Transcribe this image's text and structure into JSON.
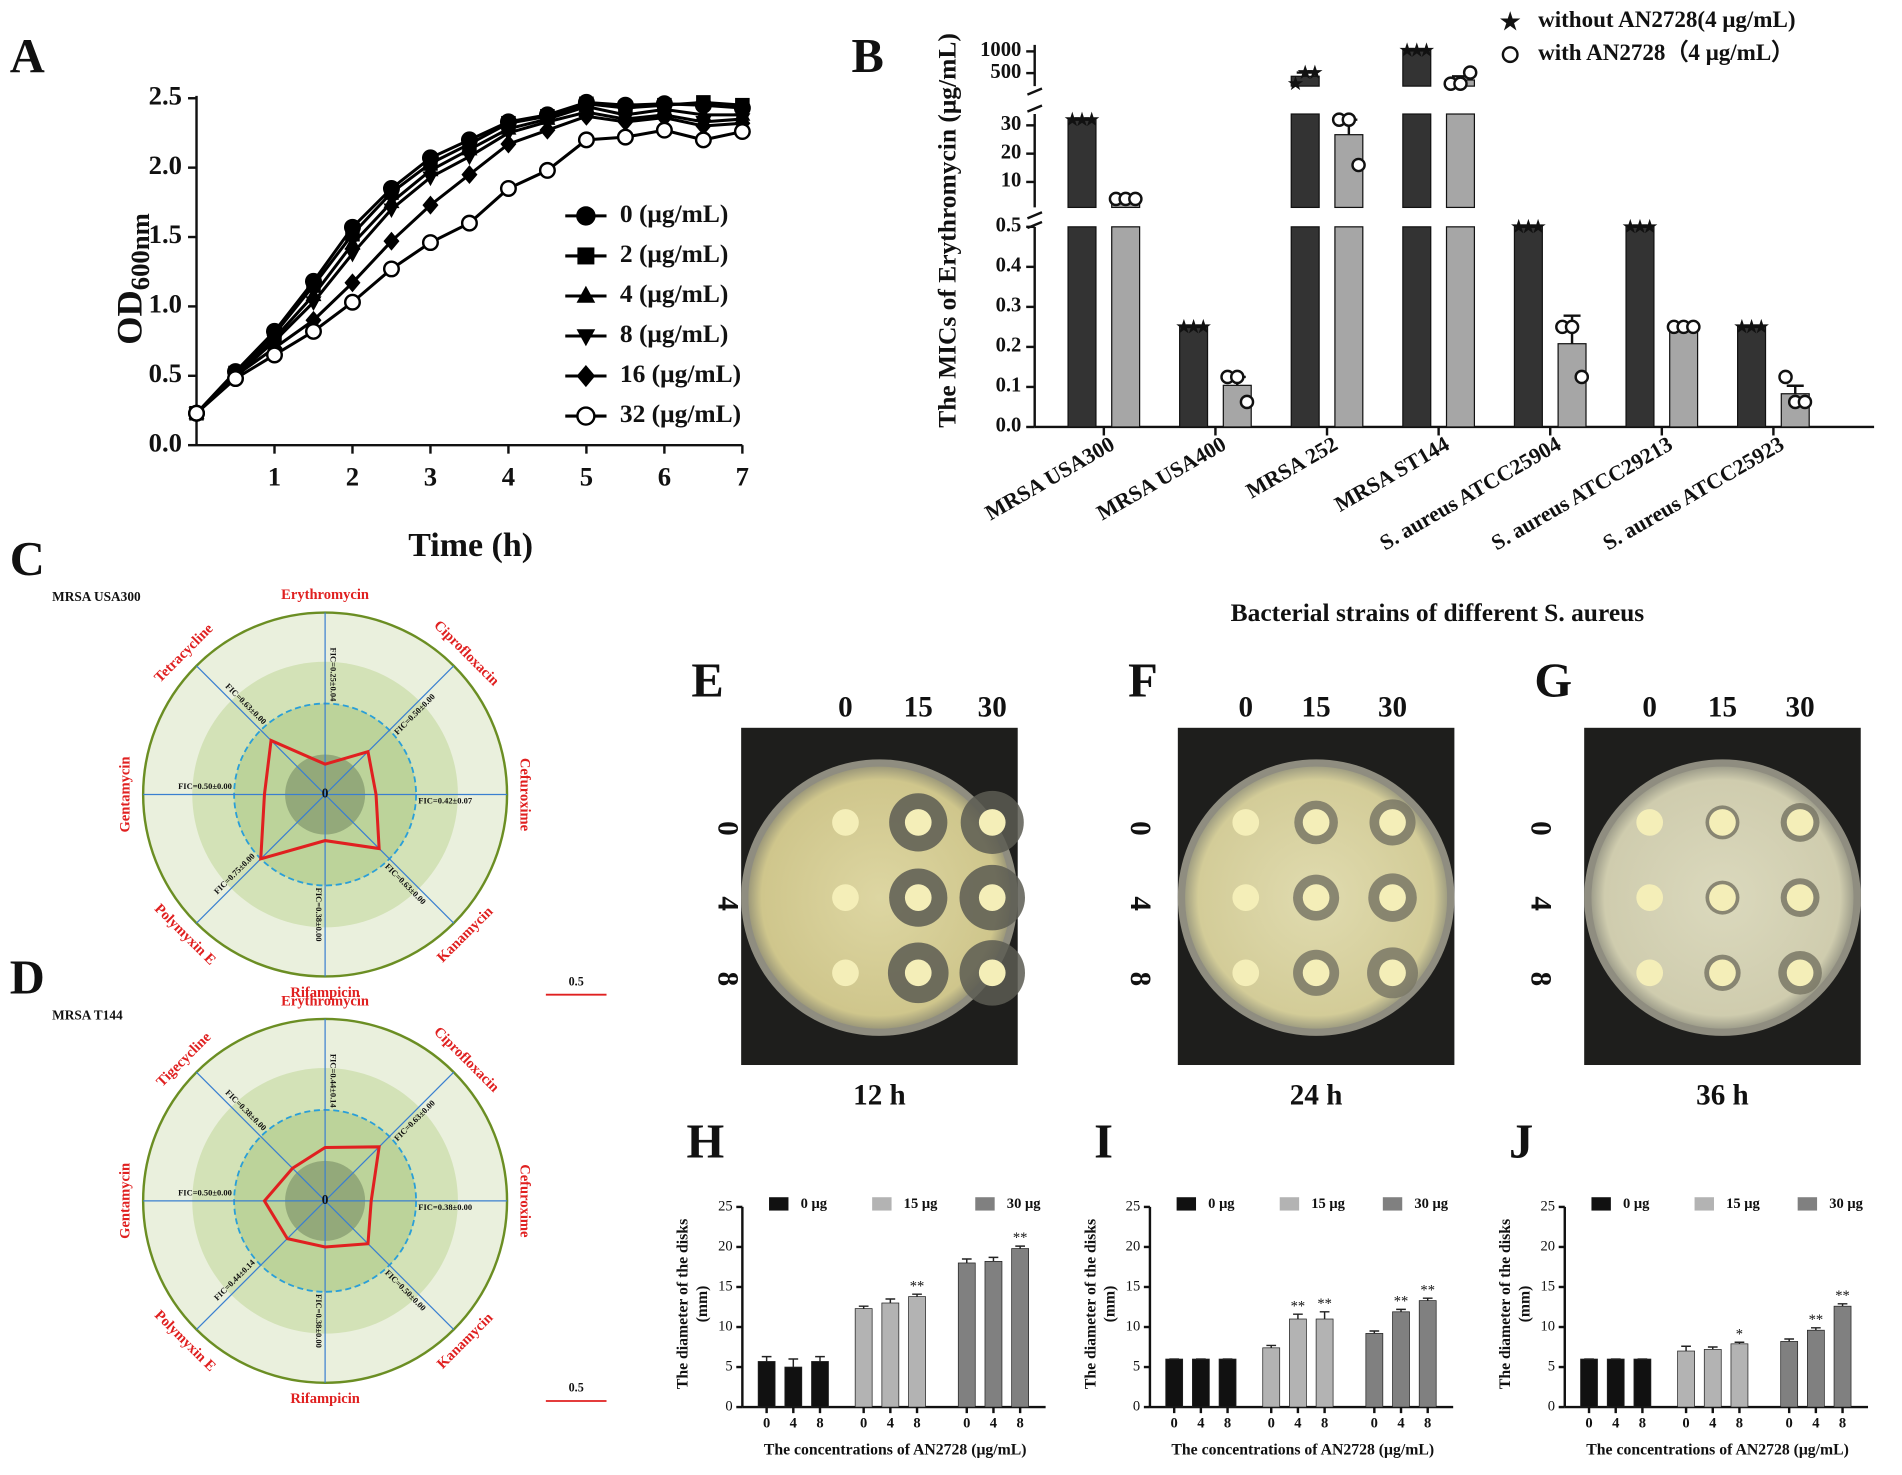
{
  "chart_data": [
    {
      "type": "line",
      "label": "A",
      "xlabel": "Time (h)",
      "ylabel": {
        "main": "OD",
        "sub": "600nm"
      },
      "x": [
        0,
        0.5,
        1,
        1.5,
        2,
        2.5,
        3,
        3.5,
        4,
        4.5,
        5,
        5.5,
        6,
        6.5,
        7
      ],
      "xlim": [
        0,
        7
      ],
      "xticks": [
        1,
        2,
        3,
        4,
        5,
        6,
        7
      ],
      "ylim": [
        0,
        2.5
      ],
      "yticks": [
        {
          "value": 0,
          "label": "0.0"
        },
        0.5,
        {
          "value": 1,
          "label": "1.0"
        },
        1.5,
        {
          "value": 2,
          "label": "2.0"
        },
        2.5
      ],
      "series": [
        {
          "name": "0 (μg/mL)",
          "color": "#000000",
          "marker": "circle",
          "values": [
            0.23,
            0.53,
            0.82,
            1.18,
            1.57,
            1.85,
            2.07,
            2.2,
            2.33,
            2.38,
            2.47,
            2.45,
            2.46,
            2.45,
            2.43
          ]
        },
        {
          "name": "2 (μg/mL)",
          "color": "#000000",
          "marker": "square",
          "values": [
            0.23,
            0.52,
            0.8,
            1.15,
            1.52,
            1.82,
            2.03,
            2.17,
            2.32,
            2.37,
            2.46,
            2.43,
            2.45,
            2.47,
            2.45
          ]
        },
        {
          "name": "4 (μg/mL)",
          "color": "#000000",
          "marker": "triangle",
          "values": [
            0.23,
            0.5,
            0.77,
            1.08,
            1.45,
            1.75,
            1.98,
            2.13,
            2.28,
            2.35,
            2.44,
            2.38,
            2.42,
            2.38,
            2.38
          ]
        },
        {
          "name": "8 (μg/mL)",
          "color": "#000000",
          "marker": "triangle-down",
          "values": [
            0.23,
            0.5,
            0.75,
            1.03,
            1.38,
            1.7,
            1.93,
            2.08,
            2.25,
            2.33,
            2.4,
            2.35,
            2.38,
            2.33,
            2.35
          ]
        },
        {
          "name": "16 (μg/mL)",
          "color": "#000000",
          "marker": "diamond",
          "values": [
            0.23,
            0.5,
            0.7,
            0.9,
            1.17,
            1.47,
            1.73,
            1.95,
            2.17,
            2.27,
            2.37,
            2.33,
            2.36,
            2.3,
            2.32
          ]
        },
        {
          "name": "32 (μg/mL)",
          "color": "#000000",
          "marker": "circle-open",
          "values": [
            0.23,
            0.48,
            0.65,
            0.82,
            1.03,
            1.27,
            1.46,
            1.6,
            1.85,
            1.98,
            2.2,
            2.22,
            2.27,
            2.2,
            2.26
          ]
        }
      ]
    },
    {
      "type": "bar",
      "label": "B",
      "ylabel": "The MICs of Erythromycin (μg/mL)",
      "xlabel": "Bacterial strains of different S. aureus",
      "categories": [
        "MRSA USA300",
        "MRSA USA400",
        "MRSA 252",
        "MRSA ST144",
        "S. aureus ATCC25904",
        "S. aureus ATCC29213",
        "S. aureus ATCC25923"
      ],
      "y_segments": [
        {
          "ylim": [
            0,
            0.5
          ],
          "yticks": [
            {
              "value": 0,
              "label": "0.0"
            },
            0.1,
            0.2,
            0.3,
            0.4,
            0.5
          ]
        },
        {
          "ylim": [
            1,
            34
          ],
          "yticks": [
            10,
            20,
            30
          ]
        },
        {
          "ylim": [
            200,
            1150
          ],
          "yticks": [
            500,
            1000
          ]
        }
      ],
      "series": [
        {
          "name": "without AN2728(4 μg/mL)",
          "color": "#333333",
          "marker": "star",
          "values": [
            32,
            0.25,
            426.7,
            1024,
            0.5,
            0.5,
            0.25
          ],
          "errors": [
            0,
            0,
            85,
            0,
            0,
            0,
            0
          ],
          "points": [
            [
              32,
              32,
              32
            ],
            [
              0.25,
              0.25,
              0.25
            ],
            [
              256,
              512,
              512
            ],
            [
              1024,
              1024,
              1024
            ],
            [
              0.5,
              0.5,
              0.5
            ],
            [
              0.5,
              0.5,
              0.5
            ],
            [
              0.25,
              0.25,
              0.25
            ]
          ]
        },
        {
          "name": "with AN2728（4 μg/mL）",
          "color": "#a6a6a6",
          "marker": "circle-open",
          "values": [
            4,
            0.104,
            26.7,
            341.3,
            0.208,
            0.25,
            0.083
          ],
          "errors": [
            0,
            0.021,
            5.3,
            85,
            0.07,
            0,
            0.02
          ],
          "points": [
            [
              4,
              4,
              4
            ],
            [
              0.125,
              0.125,
              0.0625
            ],
            [
              32,
              32,
              16
            ],
            [
              256,
              256,
              512
            ],
            [
              0.25,
              0.25,
              0.125
            ],
            [
              0.25,
              0.25,
              0.25
            ],
            [
              0.125,
              0.0625,
              0.0625
            ]
          ]
        }
      ]
    },
    {
      "type": "radar",
      "label": "C",
      "title": "MRSA USA300",
      "rlim": [
        0,
        1.5
      ],
      "scale_bar": 0.5,
      "color": "#e02020",
      "axes": [
        "Erythromycin",
        "Ciprofloxacin",
        "Cefuroxime",
        "Kanamycin",
        "Rifampicin",
        "Polymyxin E",
        "Gentamycin",
        "Tetracycline"
      ],
      "values": [
        0.25,
        0.5,
        0.42,
        0.63,
        0.38,
        0.75,
        0.5,
        0.63
      ],
      "value_labels": [
        "FIC=0.25±0.04",
        "FIC=0.50±0.00",
        "FIC=0.42±0.07",
        "FIC=0.63±0.00",
        "FIC=0.38±0.00",
        "FIC=0.75±0.00",
        "FIC=0.50±0.00",
        "FIC=0.63±0.00"
      ]
    },
    {
      "type": "radar",
      "label": "D",
      "title": "MRSA T144",
      "rlim": [
        0,
        1.5
      ],
      "scale_bar": 0.5,
      "color": "#e02020",
      "axes": [
        "Erythromycin",
        "Ciprofloxacin",
        "Cefuroxime",
        "Kanamycin",
        "Rifampicin",
        "Polymyxin E",
        "Gentamycin",
        "Tigecycline"
      ],
      "values": [
        0.44,
        0.63,
        0.38,
        0.5,
        0.38,
        0.44,
        0.5,
        0.38
      ],
      "value_labels": [
        "FIC=0.44±0.14",
        "FIC=0.63±0.00",
        "FIC=0.38±0.00",
        "FIC=0.50±0.00",
        "FIC=0.38±0.00",
        "FIC=0.44±0.14",
        "FIC=0.50±0.00",
        "FIC=0.38±0.00"
      ]
    },
    {
      "type": "bar",
      "label": "H",
      "ylabel": [
        "The diameter of the disks",
        "(mm)"
      ],
      "xlabel": "The concentrations of AN2728 (μg/mL)",
      "categories": [
        "0",
        "4",
        "8"
      ],
      "ylim": [
        0,
        25
      ],
      "yticks": [
        0,
        5,
        10,
        15,
        20,
        25
      ],
      "series": [
        {
          "name": "0 μg",
          "color": "#111111",
          "values": [
            5.7,
            5.0,
            5.7
          ],
          "errors": [
            0.6,
            1.0,
            0.6
          ],
          "annotations": [
            null,
            null,
            null
          ]
        },
        {
          "name": "15 μg",
          "color": "#b3b3b3",
          "values": [
            12.3,
            13.0,
            13.8
          ],
          "errors": [
            0.3,
            0.5,
            0.3
          ],
          "annotations": [
            null,
            null,
            "**"
          ]
        },
        {
          "name": "30 μg",
          "color": "#808080",
          "values": [
            18.0,
            18.2,
            19.8
          ],
          "errors": [
            0.5,
            0.5,
            0.3
          ],
          "annotations": [
            null,
            null,
            "**"
          ]
        }
      ]
    },
    {
      "type": "bar",
      "label": "I",
      "ylabel": [
        "The diameter of the disks",
        "(mm)"
      ],
      "xlabel": "The concentrations of AN2728 (μg/mL)",
      "categories": [
        "0",
        "4",
        "8"
      ],
      "ylim": [
        0,
        25
      ],
      "yticks": [
        0,
        5,
        10,
        15,
        20,
        25
      ],
      "series": [
        {
          "name": "0 μg",
          "color": "#111111",
          "values": [
            6,
            6,
            6
          ],
          "errors": [
            0,
            0,
            0
          ],
          "annotations": [
            null,
            null,
            null
          ]
        },
        {
          "name": "15 μg",
          "color": "#b3b3b3",
          "values": [
            7.4,
            11.0,
            11.0
          ],
          "errors": [
            0.3,
            0.6,
            0.9
          ],
          "annotations": [
            null,
            "**",
            "**"
          ]
        },
        {
          "name": "30 μg",
          "color": "#808080",
          "values": [
            9.2,
            11.9,
            13.3
          ],
          "errors": [
            0.3,
            0.3,
            0.3
          ],
          "annotations": [
            null,
            "**",
            "**"
          ]
        }
      ]
    },
    {
      "type": "bar",
      "label": "J",
      "ylabel": [
        "The diameter of the disks",
        "(mm)"
      ],
      "xlabel": "The concentrations of AN2728 (μg/mL)",
      "categories": [
        "0",
        "4",
        "8"
      ],
      "ylim": [
        0,
        25
      ],
      "yticks": [
        0,
        5,
        10,
        15,
        20,
        25
      ],
      "series": [
        {
          "name": "0 μg",
          "color": "#111111",
          "values": [
            6,
            6,
            6
          ],
          "errors": [
            0,
            0,
            0
          ],
          "annotations": [
            null,
            null,
            null
          ]
        },
        {
          "name": "15 μg",
          "color": "#b3b3b3",
          "values": [
            7.0,
            7.2,
            7.9
          ],
          "errors": [
            0.6,
            0.3,
            0.2
          ],
          "annotations": [
            null,
            null,
            "*"
          ]
        },
        {
          "name": "30 μg",
          "color": "#808080",
          "values": [
            8.2,
            9.6,
            12.6
          ],
          "errors": [
            0.3,
            0.3,
            0.3
          ],
          "annotations": [
            null,
            "**",
            "**"
          ]
        }
      ]
    }
  ],
  "plates": [
    {
      "label": "E",
      "columns": [
        "0",
        "15",
        "30"
      ],
      "rows": [
        "0",
        "4",
        "8"
      ],
      "caption": "12 h"
    },
    {
      "label": "F",
      "columns": [
        "0",
        "15",
        "30"
      ],
      "rows": [
        "0",
        "4",
        "8"
      ],
      "caption": "24 h"
    },
    {
      "label": "G",
      "columns": [
        "0",
        "15",
        "30"
      ],
      "rows": [
        "0",
        "4",
        "8"
      ],
      "caption": "36 h"
    }
  ]
}
